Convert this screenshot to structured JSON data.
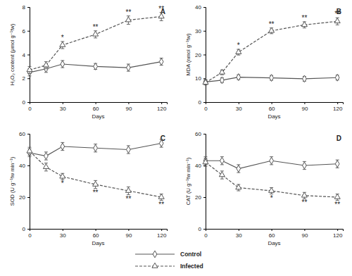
{
  "chart_data": [
    {
      "type": "line",
      "title": "A",
      "x_label": "Days",
      "y_label": "H₂O₂ content (μmol g⁻¹fw)",
      "x": [
        0,
        15,
        30,
        60,
        90,
        120
      ],
      "xlim": [
        0,
        125
      ],
      "xticks": [
        0,
        30,
        60,
        90,
        120
      ],
      "ylim": [
        0,
        8
      ],
      "yticks": [
        0,
        2,
        4,
        6,
        8
      ],
      "legend": "bottom",
      "series": [
        {
          "name": "Control",
          "color": "#555555",
          "marker": "diamond",
          "line_style": "solid",
          "values": [
            2.5,
            2.8,
            3.2,
            3.0,
            2.9,
            3.4
          ],
          "errors": [
            0.3,
            0.3,
            0.3,
            0.25,
            0.3,
            0.3
          ]
        },
        {
          "name": "Infected",
          "color": "#555555",
          "marker": "triangle",
          "line_style": "dashed",
          "values": [
            2.7,
            3.1,
            4.8,
            5.7,
            6.9,
            7.2
          ],
          "errors": [
            0.3,
            0.3,
            0.3,
            0.3,
            0.35,
            0.35
          ]
        }
      ],
      "annotations": [
        {
          "x": 30,
          "text": "*"
        },
        {
          "x": 60,
          "text": "**"
        },
        {
          "x": 90,
          "text": "**"
        },
        {
          "x": 120,
          "text": "**"
        }
      ]
    },
    {
      "type": "line",
      "title": "B",
      "x_label": "Days",
      "y_label": "MDA (nmol g⁻¹fw)",
      "x": [
        0,
        15,
        30,
        60,
        90,
        120
      ],
      "xlim": [
        0,
        125
      ],
      "xticks": [
        0,
        30,
        60,
        90,
        120
      ],
      "ylim": [
        0,
        40
      ],
      "yticks": [
        0,
        10,
        20,
        30,
        40
      ],
      "series": [
        {
          "color": "#555555",
          "marker": "diamond",
          "line_style": "solid",
          "values": [
            8.5,
            9.2,
            10.5,
            10.2,
            9.8,
            10.3
          ],
          "errors": [
            1.0,
            1.0,
            1.0,
            1.0,
            1.0,
            1.0
          ]
        },
        {
          "color": "#555555",
          "marker": "triangle",
          "line_style": "dashed",
          "values": [
            8.2,
            12.5,
            21,
            30,
            32.5,
            34
          ],
          "errors": [
            1.0,
            1.0,
            1.2,
            1.2,
            1.3,
            1.5
          ]
        }
      ],
      "annotations": [
        {
          "x": 30,
          "text": "*"
        },
        {
          "x": 60,
          "text": "**"
        },
        {
          "x": 90,
          "text": "**"
        },
        {
          "x": 120,
          "text": "**"
        }
      ]
    },
    {
      "type": "line",
      "title": "C",
      "x_label": "Days",
      "y_label": "SOD (U g⁻¹fw min⁻¹)",
      "x": [
        0,
        15,
        30,
        60,
        90,
        120
      ],
      "xlim": [
        0,
        125
      ],
      "xticks": [
        0,
        30,
        60,
        90,
        120
      ],
      "ylim": [
        0,
        60
      ],
      "yticks": [
        0,
        20,
        40,
        60
      ],
      "series": [
        {
          "color": "#555555",
          "marker": "diamond",
          "line_style": "solid",
          "values": [
            48,
            46,
            52,
            51,
            50,
            54
          ],
          "errors": [
            2.5,
            2.5,
            2.5,
            2.5,
            2.5,
            2.5
          ]
        },
        {
          "color": "#555555",
          "marker": "triangle",
          "line_style": "dashed",
          "values": [
            49,
            39,
            33,
            28,
            24,
            20
          ],
          "errors": [
            2.5,
            2.5,
            2.0,
            2.5,
            2.5,
            2.0
          ]
        }
      ],
      "annotations": [
        {
          "x": 30,
          "text": "*"
        },
        {
          "x": 60,
          "text": "**"
        },
        {
          "x": 90,
          "text": "**"
        },
        {
          "x": 120,
          "text": "**"
        }
      ]
    },
    {
      "type": "line",
      "title": "D",
      "x_label": "Days",
      "y_label": "CAT (U g⁻¹fw min⁻¹)",
      "x": [
        0,
        15,
        30,
        60,
        90,
        120
      ],
      "xlim": [
        0,
        125
      ],
      "xticks": [
        0,
        30,
        60,
        90,
        120
      ],
      "ylim": [
        0,
        60
      ],
      "yticks": [
        0,
        20,
        40,
        60
      ],
      "series": [
        {
          "color": "#555555",
          "marker": "diamond",
          "line_style": "solid",
          "values": [
            43,
            43,
            38,
            43,
            40,
            41
          ],
          "errors": [
            2.5,
            2.5,
            2.5,
            2.5,
            2.5,
            2.5
          ]
        },
        {
          "color": "#555555",
          "marker": "triangle",
          "line_style": "dashed",
          "values": [
            42,
            34,
            26,
            24,
            21,
            20
          ],
          "errors": [
            2.5,
            2.5,
            2.0,
            2.0,
            2.0,
            2.0
          ]
        }
      ],
      "annotations": [
        {
          "x": 60,
          "text": "*"
        },
        {
          "x": 90,
          "text": "**"
        },
        {
          "x": 120,
          "text": "**"
        }
      ]
    }
  ]
}
